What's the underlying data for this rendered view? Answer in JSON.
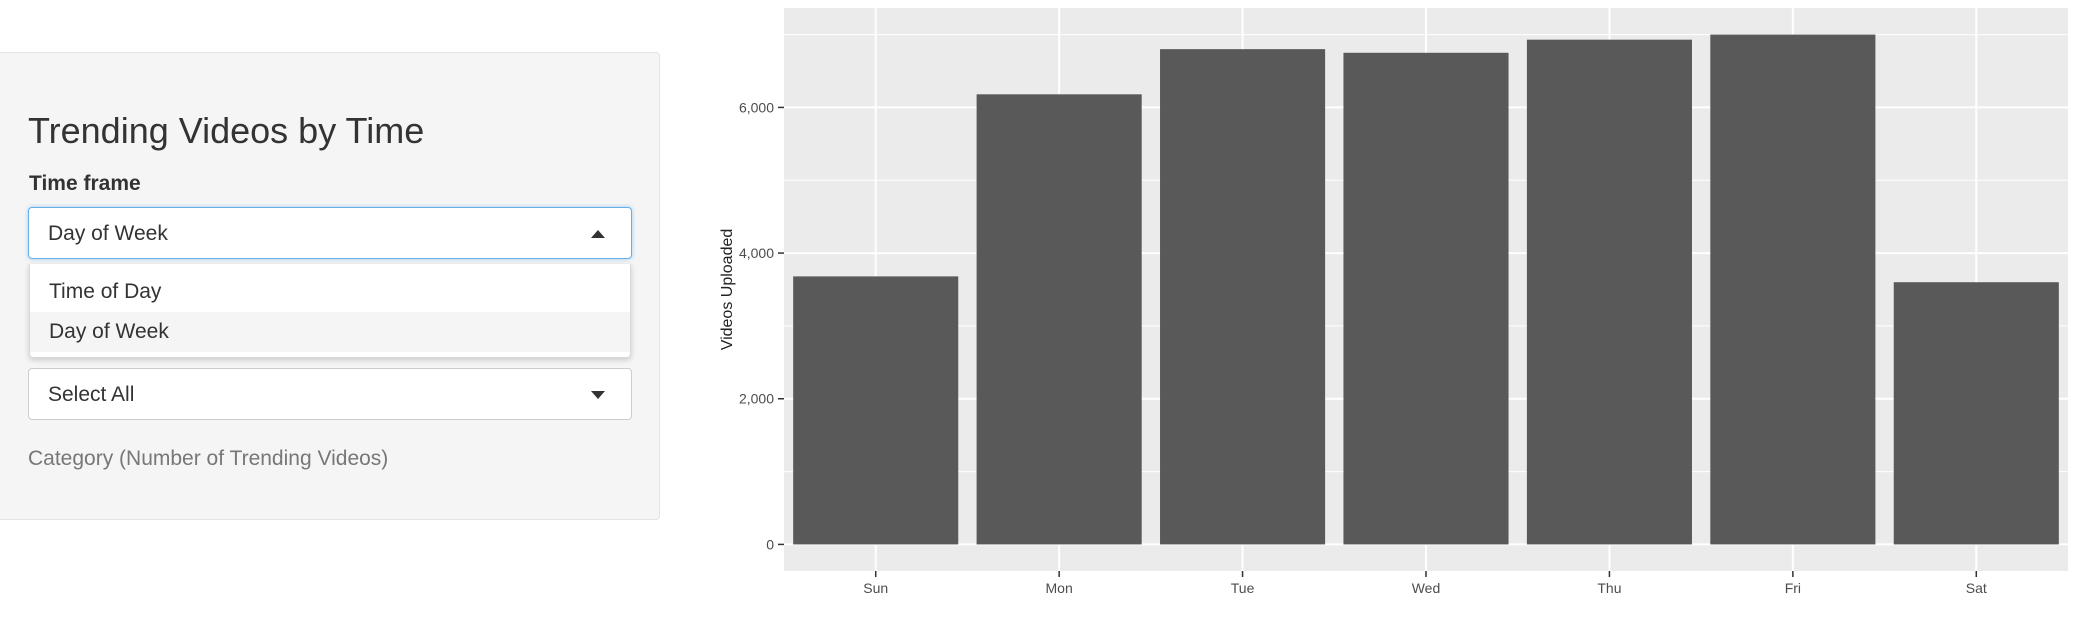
{
  "sidebar": {
    "title": "Trending Videos by Time",
    "time_frame_label": "Time frame",
    "time_frame_value": "Day of Week",
    "time_frame_options": [
      "Time of Day",
      "Day of Week"
    ],
    "category_select_value": "Select All",
    "category_helper": "Category (Number of Trending Videos)"
  },
  "chart_data": {
    "type": "bar",
    "categories": [
      "Sun",
      "Mon",
      "Tue",
      "Wed",
      "Thu",
      "Fri",
      "Sat"
    ],
    "values": [
      3680,
      6180,
      6800,
      6750,
      6930,
      7000,
      3600
    ],
    "ylabel": "Videos Uploaded",
    "xlabel": "",
    "ylim": [
      -365,
      7365
    ],
    "yticks": [
      0,
      2000,
      4000,
      6000
    ],
    "ytick_labels": [
      "0",
      "2,000",
      "4,000",
      "6,000"
    ],
    "grid": true,
    "colors": {
      "bar": "#595959",
      "panel": "#ebebeb",
      "grid": "#ffffff"
    }
  }
}
